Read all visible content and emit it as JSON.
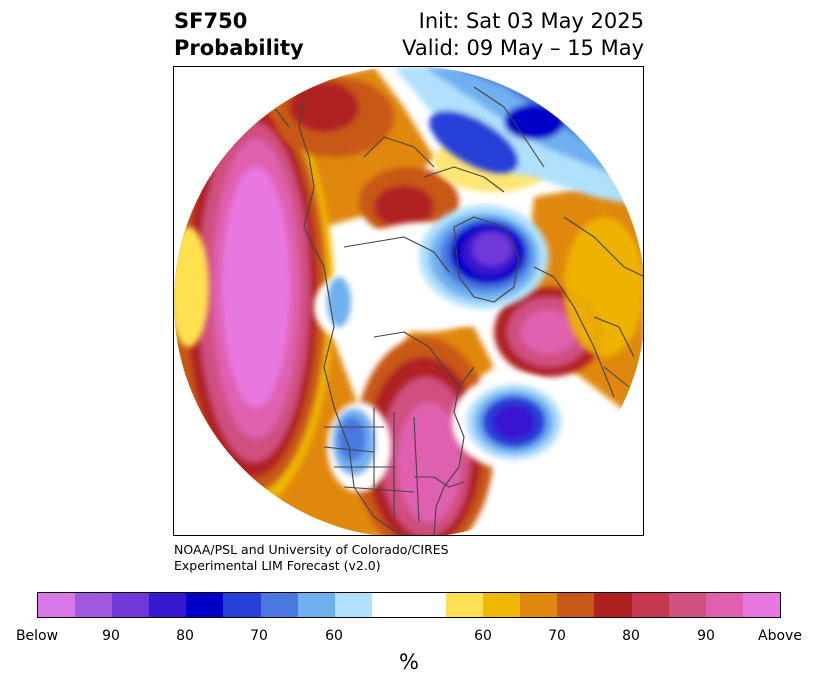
{
  "header": {
    "title_line1": "SF750",
    "title_line2": "Probability",
    "init_text": "Init: Sat 03 May 2025",
    "valid_text": "Valid: 09 May – 15 May"
  },
  "map": {
    "projection": "polar stereographic (north)",
    "variable": "SF750 probability"
  },
  "credits": {
    "line1": "NOAA/PSL and University of Colorado/CIRES",
    "line2": "Experimental LIM Forecast (v2.0)"
  },
  "colorbar": {
    "colors": [
      "#d878e8",
      "#a058e0",
      "#7038d8",
      "#3818d0",
      "#0000c8",
      "#2840d8",
      "#4878e0",
      "#70b0f0",
      "#b0e0fc",
      "#ffffff",
      "#ffffff",
      "#ffe050",
      "#f0b800",
      "#e08810",
      "#c85818",
      "#b02020",
      "#c83850",
      "#d05080",
      "#e060b0",
      "#e878e0"
    ],
    "tick_labels": [
      "Below",
      "90",
      "80",
      "70",
      "60",
      "60",
      "70",
      "80",
      "90",
      "Above"
    ],
    "unit_label": "%"
  },
  "colors": {
    "above_max": "#e878e0",
    "below_max": "#7038d8",
    "neutral": "#ffffff",
    "coastline": "#444444"
  }
}
